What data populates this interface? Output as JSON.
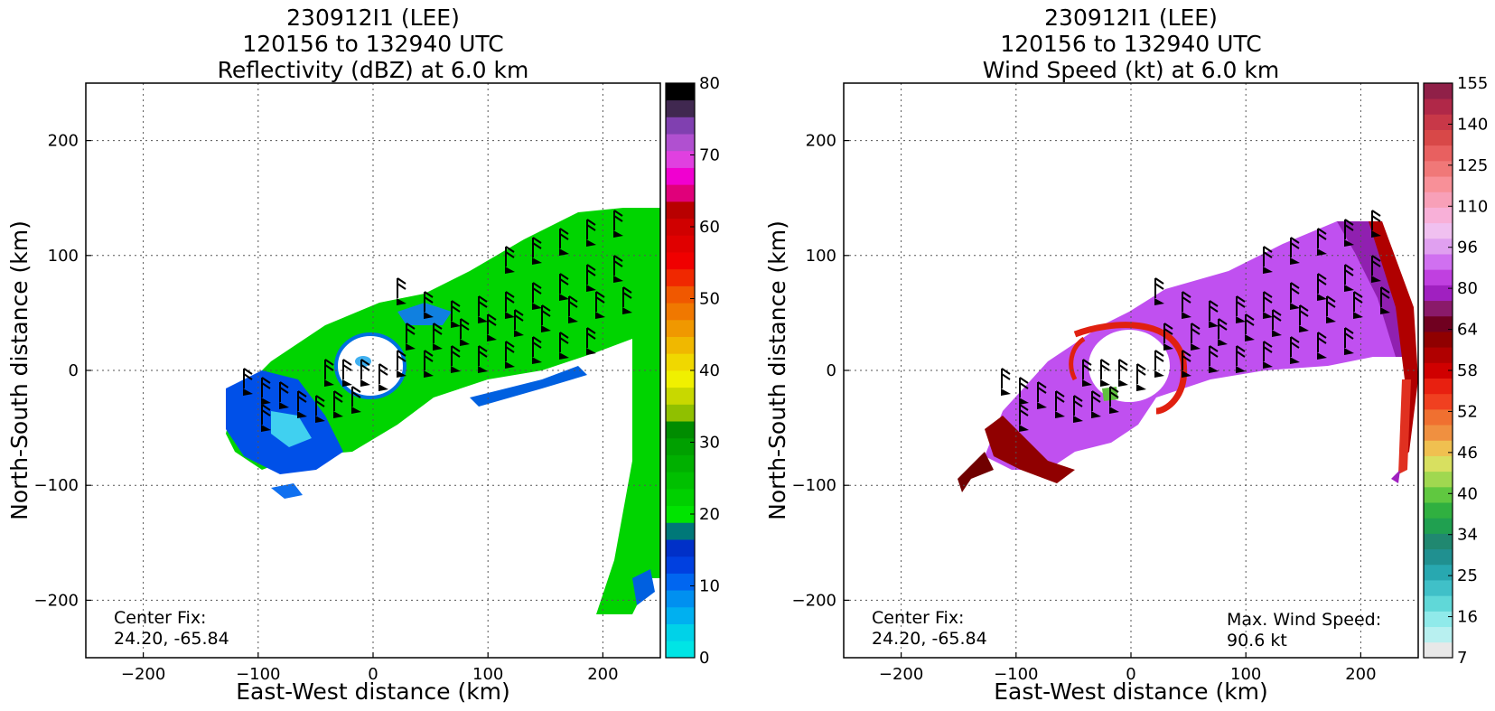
{
  "panels": [
    {
      "id": "reflectivity",
      "title_lines": [
        "230912I1 (LEE)",
        "120156 to 132940 UTC",
        "Reflectivity (dBZ) at 6.0 km"
      ],
      "xlabel": "East-West distance (km)",
      "ylabel": "North-South distance (km)",
      "xticks": [
        "−200",
        "−100",
        "0",
        "100",
        "200"
      ],
      "yticks": [
        "200",
        "100",
        "0",
        "−100",
        "−200"
      ],
      "center_fix_label": "Center Fix:",
      "center_fix_value": "24.20, -65.84",
      "colorbar_ticks": [
        "80",
        "70",
        "60",
        "50",
        "40",
        "30",
        "20",
        "10",
        "0"
      ],
      "colorbar_colors": [
        "#00e5e5",
        "#00d2e8",
        "#00b0f0",
        "#0090f0",
        "#0066f0",
        "#0040e0",
        "#0030c8",
        "#007878",
        "#00e400",
        "#00d000",
        "#00c000",
        "#00b000",
        "#00a000",
        "#008c00",
        "#90c000",
        "#c8d800",
        "#f0f000",
        "#f0d800",
        "#f0b800",
        "#f09800",
        "#f07800",
        "#f05800",
        "#f02800",
        "#f00000",
        "#e00000",
        "#d00000",
        "#b80000",
        "#e0007a",
        "#f000d0",
        "#e040e0",
        "#b050d0",
        "#8040b0",
        "#402850",
        "#000000"
      ]
    },
    {
      "id": "wind",
      "title_lines": [
        "230912I1 (LEE)",
        "120156 to 132940 UTC",
        "Wind Speed (kt) at 6.0 km"
      ],
      "xlabel": "East-West distance (km)",
      "ylabel": "North-South distance (km)",
      "xticks": [
        "−200",
        "−100",
        "0",
        "100",
        "200"
      ],
      "yticks": [
        "200",
        "100",
        "0",
        "−100",
        "−200"
      ],
      "center_fix_label": "Center Fix:",
      "center_fix_value": "24.20, -65.84",
      "max_wind_label": "Max. Wind Speed:",
      "max_wind_value": "90.6 kt",
      "colorbar_ticks": [
        "155",
        "140",
        "125",
        "110",
        "96",
        "80",
        "64",
        "58",
        "52",
        "46",
        "40",
        "34",
        "25",
        "16",
        "7"
      ],
      "colorbar_colors": [
        "#e8e8e8",
        "#b8f0f0",
        "#90eaea",
        "#60d8d8",
        "#40c0c8",
        "#28a8b0",
        "#209090",
        "#208870",
        "#20a050",
        "#30b040",
        "#60c840",
        "#a0d850",
        "#d8e060",
        "#f0c050",
        "#f09040",
        "#f07030",
        "#f04020",
        "#e82010",
        "#d00000",
        "#b00000",
        "#900000",
        "#700020",
        "#8a1a6a",
        "#a020c0",
        "#c040e0",
        "#d070f0",
        "#e0a0f0",
        "#f0c0f0",
        "#f8b0d8",
        "#f8a0b8",
        "#f89098",
        "#f07878",
        "#e86060",
        "#d84848",
        "#c83848",
        "#b02848",
        "#902048"
      ]
    }
  ],
  "chart_data": [
    {
      "type": "heatmap",
      "title": "230912I1 (LEE) 120156 to 132940 UTC Reflectivity (dBZ) at 6.0 km",
      "xlabel": "East-West distance (km)",
      "ylabel": "North-South distance (km)",
      "xlim": [
        -250,
        250
      ],
      "ylim": [
        -250,
        250
      ],
      "grid": true,
      "colorbar_range": [
        0,
        80
      ],
      "colorbar_step": 2.5,
      "center_fix": [
        24.2,
        -65.84
      ],
      "overlay": "wind barbs"
    },
    {
      "type": "heatmap",
      "title": "230912I1 (LEE) 120156 to 132940 UTC Wind Speed (kt) at 6.0 km",
      "xlabel": "East-West distance (km)",
      "ylabel": "North-South distance (km)",
      "xlim": [
        -250,
        250
      ],
      "ylim": [
        -250,
        250
      ],
      "grid": true,
      "colorbar_range": [
        0,
        160
      ],
      "center_fix": [
        24.2,
        -65.84
      ],
      "max_wind_speed_kt": 90.6,
      "overlay": "wind barbs, contours"
    }
  ]
}
